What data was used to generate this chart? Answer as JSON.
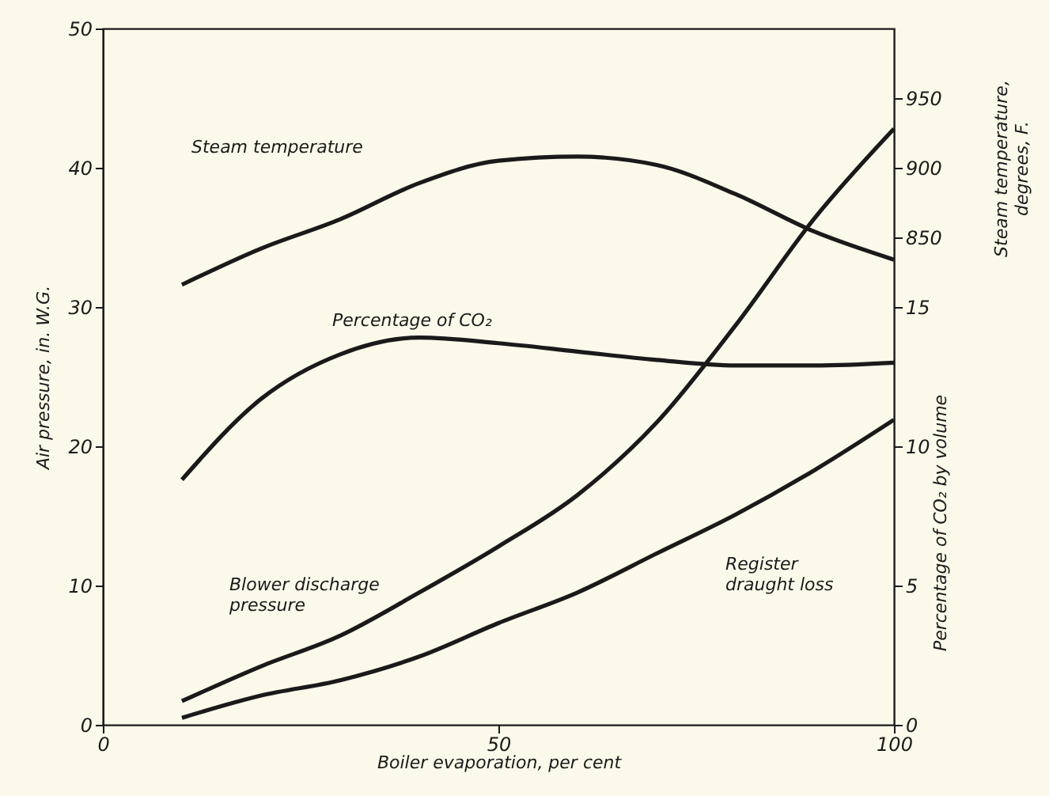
{
  "chart_data": {
    "type": "line",
    "xlabel": "Boiler evaporation, per cent",
    "ylabel": "Air pressure, in. W.G.",
    "y2label": "Percentage of CO₂ by volume",
    "y3label": "Steam temperature,\ndegrees, F.",
    "xlim": [
      0,
      100
    ],
    "xticks": [
      0,
      50,
      100
    ],
    "ylim": [
      0,
      50
    ],
    "yticks": [
      0,
      10,
      20,
      30,
      40,
      50
    ],
    "y2lim": [
      0,
      25
    ],
    "y2ticks": [
      0,
      5,
      10,
      15
    ],
    "y3lim": [
      500,
      1000
    ],
    "y3ticks": [
      850,
      900,
      950
    ],
    "grid": false,
    "marker": "none",
    "line_style": "solid",
    "x": [
      10,
      20,
      30,
      40,
      50,
      60,
      70,
      80,
      90,
      100
    ],
    "series": [
      {
        "name": "Steam temperature",
        "color": "#1a1a1a",
        "axis": "y3",
        "values": [
          816,
          842,
          863,
          889,
          905,
          908,
          902,
          881,
          854,
          834
        ]
      },
      {
        "name": "Percentage of CO₂",
        "color": "#1a1a1a",
        "axis": "y2",
        "values": [
          8.8,
          11.7,
          13.3,
          13.9,
          13.7,
          13.4,
          13.1,
          12.9,
          12.9,
          13.0
        ]
      },
      {
        "name": "Blower discharge\npressure",
        "color": "#1a1a1a",
        "values": [
          1.7,
          4.2,
          6.4,
          9.5,
          12.8,
          16.5,
          21.7,
          28.7,
          36.4,
          42.8
        ]
      },
      {
        "name": "Register\ndraught loss",
        "color": "#1a1a1a",
        "values": [
          0.5,
          2.1,
          3.2,
          4.9,
          7.3,
          9.5,
          12.3,
          15.1,
          18.3,
          21.9
        ]
      }
    ]
  }
}
